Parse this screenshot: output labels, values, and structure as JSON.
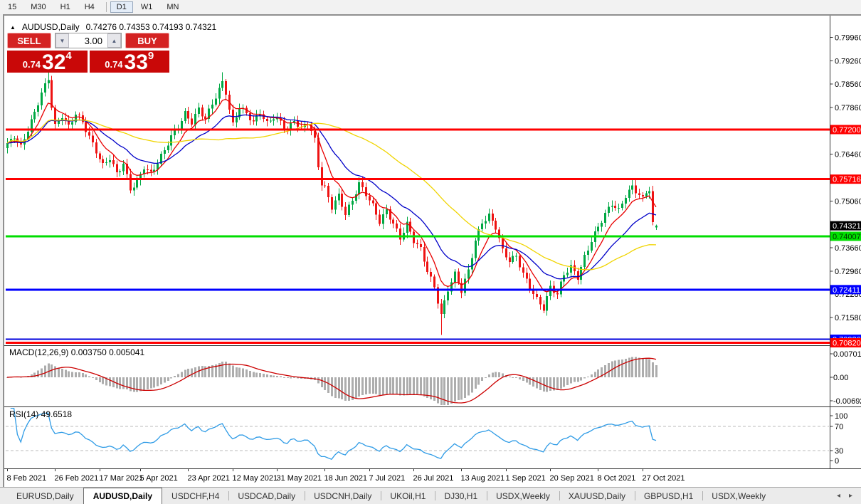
{
  "toolbar": {
    "timeframes": [
      "15",
      "M30",
      "H1",
      "H4",
      "D1",
      "W1",
      "MN"
    ],
    "active": "D1",
    "separator_after": "H4"
  },
  "symbol_bar": {
    "collapse_icon": "▲",
    "title": "AUDUSD,Daily",
    "ohlc_text": "0.74276 0.74353 0.74193 0.74321"
  },
  "trade_panel": {
    "sell_label": "SELL",
    "buy_label": "BUY",
    "volume": "3.00",
    "down_icon": "▼",
    "up_icon": "▲",
    "sell_price": {
      "prefix": "0.74",
      "big": "32",
      "sup": "4"
    },
    "buy_price": {
      "prefix": "0.74",
      "big": "33",
      "sup": "9"
    }
  },
  "price_axis": {
    "ticks": [
      {
        "label": "0.79960",
        "value": 0.7996
      },
      {
        "label": "0.79260",
        "value": 0.7926
      },
      {
        "label": "0.78560",
        "value": 0.7856
      },
      {
        "label": "0.77860",
        "value": 0.7786
      },
      {
        "label": "0.76460",
        "value": 0.7646
      },
      {
        "label": "0.75060",
        "value": 0.7506
      },
      {
        "label": "0.73660",
        "value": 0.7366
      },
      {
        "label": "0.72960",
        "value": 0.7296
      },
      {
        "label": "0.72280",
        "value": 0.7228
      },
      {
        "label": "0.71580",
        "value": 0.7158
      }
    ],
    "badges": [
      {
        "label": "0.77200",
        "value": 0.772,
        "bg": "#FF0000",
        "fg": "#FFFFFF"
      },
      {
        "label": "0.75716",
        "value": 0.75716,
        "bg": "#FF0000",
        "fg": "#FFFFFF"
      },
      {
        "label": "0.74321",
        "value": 0.74321,
        "bg": "#000000",
        "fg": "#FFFFFF"
      },
      {
        "label": "0.74007",
        "value": 0.74007,
        "bg": "#00E000",
        "fg": "#003300"
      },
      {
        "label": "0.72411",
        "value": 0.72411,
        "bg": "#0000FF",
        "fg": "#FFFFFF"
      },
      {
        "label": "0.70926",
        "value": 0.70926,
        "bg": "#0000FF",
        "fg": "#FFFFFF"
      },
      {
        "label": "0.70820",
        "value": 0.7082,
        "bg": "#FF0000",
        "fg": "#FFFFFF"
      }
    ]
  },
  "h_lines": [
    {
      "value": 0.772,
      "color": "#FF0000",
      "width": 3
    },
    {
      "value": 0.75716,
      "color": "#FF0000",
      "width": 3
    },
    {
      "value": 0.74007,
      "color": "#00DD00",
      "width": 3
    },
    {
      "value": 0.72411,
      "color": "#0000FF",
      "width": 3
    },
    {
      "value": 0.70926,
      "color": "#0000DD",
      "width": 2
    },
    {
      "value": 0.7082,
      "color": "#FF0000",
      "width": 3
    }
  ],
  "x_axis": {
    "ticks": [
      {
        "bar": 0,
        "label": "8 Feb 2021"
      },
      {
        "bar": 14,
        "label": "26 Feb 2021"
      },
      {
        "bar": 27,
        "label": "17 Mar 2021"
      },
      {
        "bar": 39,
        "label": "5 Apr 2021"
      },
      {
        "bar": 53,
        "label": "23 Apr 2021"
      },
      {
        "bar": 66,
        "label": "12 May 2021"
      },
      {
        "bar": 79,
        "label": "31 May 2021"
      },
      {
        "bar": 93,
        "label": "18 Jun 2021"
      },
      {
        "bar": 106,
        "label": "7 Jul 2021"
      },
      {
        "bar": 119,
        "label": "26 Jul 2021"
      },
      {
        "bar": 133,
        "label": "13 Aug 2021"
      },
      {
        "bar": 146,
        "label": "1 Sep 2021"
      },
      {
        "bar": 159,
        "label": "20 Sep 2021"
      },
      {
        "bar": 173,
        "label": "8 Oct 2021"
      },
      {
        "bar": 186,
        "label": "27 Oct 2021"
      }
    ]
  },
  "macd_panel": {
    "label": "MACD(12,26,9) 0.003750 0.005041",
    "values": {
      "macd": "0.003750",
      "signal": "0.005041"
    },
    "axis": [
      {
        "label": "0.007015",
        "value": 0.007015
      },
      {
        "label": "0.00",
        "value": 0
      },
      {
        "label": "-0.006923",
        "value": -0.006923
      }
    ],
    "fast": 12,
    "slow": 26,
    "signal_period": 9,
    "hist_color": "#ADADAD",
    "signal_color": "#CC0000"
  },
  "rsi_panel": {
    "label": "RSI(14) 49.6518",
    "current": "49.6518",
    "period": 14,
    "axis_labels": [
      "100",
      "70",
      "30",
      "0"
    ],
    "levels": [
      70,
      30
    ],
    "line_color": "#2E9BE6",
    "level_color": "#BBBBBB"
  },
  "tabs": {
    "items": [
      "EURUSD,Daily",
      "AUDUSD,Daily",
      "USDCHF,H4",
      "USDCAD,Daily",
      "USDCNH,Daily",
      "UKOil,H1",
      "DJ30,H1",
      "USDX,Weekly",
      "XAUUSD,Daily",
      "GBPUSD,H1",
      "USDX,Weekly"
    ],
    "active_index": 1,
    "left_arrow": "◂",
    "right_arrow": "▸"
  },
  "chart_data": {
    "type": "candlestick",
    "symbol": "AUDUSD",
    "timeframe": "Daily",
    "bars": 191,
    "date_range": [
      "8 Feb 2021",
      "early Nov 2021"
    ],
    "last_bar_ohlc": {
      "o": 0.74276,
      "h": 0.74353,
      "l": 0.74193,
      "c": 0.74321
    },
    "horizontal_levels": [
      0.772,
      0.75716,
      0.74007,
      0.72411,
      0.70926,
      0.7082
    ],
    "colors": {
      "bull": "#00A843",
      "bear": "#EE1212",
      "ma_fast": "#E80000",
      "ma_mid": "#0000C8",
      "ma_slow": "#F0D400"
    },
    "moving_averages": [
      {
        "type": "ema",
        "period": 8,
        "color": "#E80000"
      },
      {
        "type": "ema",
        "period": 21,
        "color": "#0000C8"
      },
      {
        "type": "sma",
        "period": 50,
        "color": "#F0D400"
      }
    ],
    "synthesis": {
      "wiggle_amp": 0.00075,
      "wiggle_freq": 1.83,
      "wiggle_phase": 0.6,
      "wick_amp": 0.0016,
      "close_path_points": [
        [
          0,
          0.7675
        ],
        [
          2,
          0.77
        ],
        [
          4,
          0.7668
        ],
        [
          6,
          0.772
        ],
        [
          8,
          0.777
        ],
        [
          10,
          0.783
        ],
        [
          12,
          0.7872
        ],
        [
          13,
          0.779
        ],
        [
          14,
          0.773
        ],
        [
          16,
          0.7762
        ],
        [
          18,
          0.7728
        ],
        [
          20,
          0.7768
        ],
        [
          22,
          0.7742
        ],
        [
          24,
          0.7698
        ],
        [
          26,
          0.7655
        ],
        [
          28,
          0.7612
        ],
        [
          30,
          0.7635
        ],
        [
          32,
          0.7588
        ],
        [
          34,
          0.7618
        ],
        [
          36,
          0.7542
        ],
        [
          38,
          0.7562
        ],
        [
          40,
          0.7608
        ],
        [
          42,
          0.7588
        ],
        [
          44,
          0.7622
        ],
        [
          46,
          0.7658
        ],
        [
          48,
          0.77
        ],
        [
          50,
          0.7728
        ],
        [
          52,
          0.7768
        ],
        [
          54,
          0.7742
        ],
        [
          56,
          0.7782
        ],
        [
          58,
          0.7752
        ],
        [
          60,
          0.7798
        ],
        [
          62,
          0.7838
        ],
        [
          63,
          0.7862
        ],
        [
          64,
          0.7832
        ],
        [
          65,
          0.7778
        ],
        [
          66,
          0.7735
        ],
        [
          68,
          0.7788
        ],
        [
          70,
          0.7768
        ],
        [
          72,
          0.7742
        ],
        [
          74,
          0.7772
        ],
        [
          76,
          0.7738
        ],
        [
          78,
          0.7758
        ],
        [
          80,
          0.7742
        ],
        [
          82,
          0.7718
        ],
        [
          84,
          0.7748
        ],
        [
          86,
          0.7722
        ],
        [
          88,
          0.7742
        ],
        [
          90,
          0.7688
        ],
        [
          91,
          0.7612
        ],
        [
          92,
          0.7558
        ],
        [
          93,
          0.7545
        ],
        [
          95,
          0.7488
        ],
        [
          97,
          0.7522
        ],
        [
          99,
          0.7468
        ],
        [
          101,
          0.7508
        ],
        [
          103,
          0.7558
        ],
        [
          105,
          0.7528
        ],
        [
          107,
          0.7492
        ],
        [
          109,
          0.7444
        ],
        [
          111,
          0.7478
        ],
        [
          113,
          0.7438
        ],
        [
          115,
          0.7395
        ],
        [
          117,
          0.7438
        ],
        [
          119,
          0.7388
        ],
        [
          121,
          0.7362
        ],
        [
          123,
          0.7298
        ],
        [
          125,
          0.7248
        ],
        [
          127,
          0.7165
        ],
        [
          129,
          0.7242
        ],
        [
          131,
          0.7288
        ],
        [
          133,
          0.7238
        ],
        [
          135,
          0.7298
        ],
        [
          137,
          0.7388
        ],
        [
          139,
          0.7442
        ],
        [
          141,
          0.7462
        ],
        [
          143,
          0.7428
        ],
        [
          145,
          0.7358
        ],
        [
          147,
          0.7328
        ],
        [
          149,
          0.7342
        ],
        [
          151,
          0.7288
        ],
        [
          153,
          0.7248
        ],
        [
          155,
          0.7212
        ],
        [
          157,
          0.7185
        ],
        [
          159,
          0.7248
        ],
        [
          161,
          0.7228
        ],
        [
          163,
          0.7288
        ],
        [
          165,
          0.7308
        ],
        [
          167,
          0.7278
        ],
        [
          169,
          0.7338
        ],
        [
          171,
          0.7388
        ],
        [
          173,
          0.7428
        ],
        [
          175,
          0.7468
        ],
        [
          177,
          0.7498
        ],
        [
          179,
          0.7478
        ],
        [
          181,
          0.7522
        ],
        [
          183,
          0.7548
        ],
        [
          185,
          0.7525
        ],
        [
          186,
          0.7512
        ],
        [
          187,
          0.7532
        ],
        [
          188,
          0.7542
        ],
        [
          189,
          0.7437
        ],
        [
          190,
          0.74321
        ]
      ],
      "overrides": {
        "12": {
          "h": 0.7892
        },
        "63": {
          "h": 0.7891
        },
        "127": {
          "l": 0.7106
        },
        "189": {
          "h": 0.7552
        },
        "190": {
          "o": 0.74276,
          "h": 0.74353,
          "l": 0.74193,
          "c": 0.74321
        }
      }
    }
  }
}
